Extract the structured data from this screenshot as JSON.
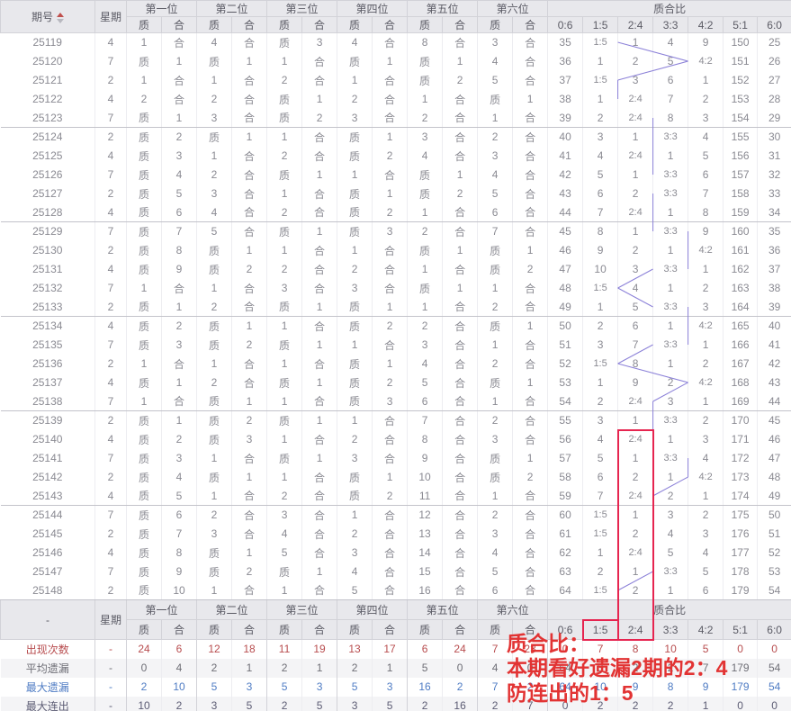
{
  "table": {
    "header": {
      "issue": "期号",
      "weekday": "星期",
      "positions": [
        "第一位",
        "第二位",
        "第三位",
        "第四位",
        "第五位",
        "第六位"
      ],
      "prime": "质",
      "composite": "合",
      "ratio_group": "质合比",
      "ratio_cols": [
        "0:6",
        "1:5",
        "2:4",
        "3:3",
        "4:2",
        "5:1",
        "6:0"
      ]
    },
    "rows": [
      {
        "issue": "25119",
        "week": "4",
        "cells": [
          "1",
          "合",
          "4",
          "合",
          "质",
          "3",
          "4",
          "合",
          "8",
          "合",
          "3",
          "合"
        ],
        "ratio": [
          "35",
          "1:5",
          "1",
          "4",
          "9",
          "150",
          "25"
        ]
      },
      {
        "issue": "25120",
        "week": "7",
        "cells": [
          "质",
          "1",
          "质",
          "1",
          "1",
          "合",
          "质",
          "1",
          "质",
          "1",
          "4",
          "合"
        ],
        "ratio": [
          "36",
          "1",
          "2",
          "5",
          "4:2",
          "151",
          "26"
        ]
      },
      {
        "issue": "25121",
        "week": "2",
        "cells": [
          "1",
          "合",
          "1",
          "合",
          "2",
          "合",
          "1",
          "合",
          "质",
          "2",
          "5",
          "合"
        ],
        "ratio": [
          "37",
          "1:5",
          "3",
          "6",
          "1",
          "152",
          "27"
        ]
      },
      {
        "issue": "25122",
        "week": "4",
        "cells": [
          "2",
          "合",
          "2",
          "合",
          "质",
          "1",
          "2",
          "合",
          "1",
          "合",
          "质",
          "1"
        ],
        "ratio": [
          "38",
          "1",
          "2:4",
          "7",
          "2",
          "153",
          "28"
        ]
      },
      {
        "issue": "25123",
        "week": "7",
        "cells": [
          "质",
          "1",
          "3",
          "合",
          "质",
          "2",
          "3",
          "合",
          "2",
          "合",
          "1",
          "合"
        ],
        "ratio": [
          "39",
          "2",
          "2:4",
          "8",
          "3",
          "154",
          "29"
        ]
      },
      {
        "issue": "25124",
        "week": "2",
        "cells": [
          "质",
          "2",
          "质",
          "1",
          "1",
          "合",
          "质",
          "1",
          "3",
          "合",
          "2",
          "合"
        ],
        "ratio": [
          "40",
          "3",
          "1",
          "3:3",
          "4",
          "155",
          "30"
        ]
      },
      {
        "issue": "25125",
        "week": "4",
        "cells": [
          "质",
          "3",
          "1",
          "合",
          "2",
          "合",
          "质",
          "2",
          "4",
          "合",
          "3",
          "合"
        ],
        "ratio": [
          "41",
          "4",
          "2:4",
          "1",
          "5",
          "156",
          "31"
        ]
      },
      {
        "issue": "25126",
        "week": "7",
        "cells": [
          "质",
          "4",
          "2",
          "合",
          "质",
          "1",
          "1",
          "合",
          "质",
          "1",
          "4",
          "合"
        ],
        "ratio": [
          "42",
          "5",
          "1",
          "3:3",
          "6",
          "157",
          "32"
        ]
      },
      {
        "issue": "25127",
        "week": "2",
        "cells": [
          "质",
          "5",
          "3",
          "合",
          "1",
          "合",
          "质",
          "1",
          "质",
          "2",
          "5",
          "合"
        ],
        "ratio": [
          "43",
          "6",
          "2",
          "3:3",
          "7",
          "158",
          "33"
        ]
      },
      {
        "issue": "25128",
        "week": "4",
        "cells": [
          "质",
          "6",
          "4",
          "合",
          "2",
          "合",
          "质",
          "2",
          "1",
          "合",
          "6",
          "合"
        ],
        "ratio": [
          "44",
          "7",
          "2:4",
          "1",
          "8",
          "159",
          "34"
        ]
      },
      {
        "issue": "25129",
        "week": "7",
        "cells": [
          "质",
          "7",
          "5",
          "合",
          "质",
          "1",
          "质",
          "3",
          "2",
          "合",
          "7",
          "合"
        ],
        "ratio": [
          "45",
          "8",
          "1",
          "3:3",
          "9",
          "160",
          "35"
        ]
      },
      {
        "issue": "25130",
        "week": "2",
        "cells": [
          "质",
          "8",
          "质",
          "1",
          "1",
          "合",
          "1",
          "合",
          "质",
          "1",
          "质",
          "1"
        ],
        "ratio": [
          "46",
          "9",
          "2",
          "1",
          "4:2",
          "161",
          "36"
        ]
      },
      {
        "issue": "25131",
        "week": "4",
        "cells": [
          "质",
          "9",
          "质",
          "2",
          "2",
          "合",
          "2",
          "合",
          "1",
          "合",
          "质",
          "2"
        ],
        "ratio": [
          "47",
          "10",
          "3",
          "3:3",
          "1",
          "162",
          "37"
        ]
      },
      {
        "issue": "25132",
        "week": "7",
        "cells": [
          "1",
          "合",
          "1",
          "合",
          "3",
          "合",
          "3",
          "合",
          "质",
          "1",
          "1",
          "合"
        ],
        "ratio": [
          "48",
          "1:5",
          "4",
          "1",
          "2",
          "163",
          "38"
        ]
      },
      {
        "issue": "25133",
        "week": "2",
        "cells": [
          "质",
          "1",
          "2",
          "合",
          "质",
          "1",
          "质",
          "1",
          "1",
          "合",
          "2",
          "合"
        ],
        "ratio": [
          "49",
          "1",
          "5",
          "3:3",
          "3",
          "164",
          "39"
        ]
      },
      {
        "issue": "25134",
        "week": "4",
        "cells": [
          "质",
          "2",
          "质",
          "1",
          "1",
          "合",
          "质",
          "2",
          "2",
          "合",
          "质",
          "1"
        ],
        "ratio": [
          "50",
          "2",
          "6",
          "1",
          "4:2",
          "165",
          "40"
        ]
      },
      {
        "issue": "25135",
        "week": "7",
        "cells": [
          "质",
          "3",
          "质",
          "2",
          "质",
          "1",
          "1",
          "合",
          "3",
          "合",
          "1",
          "合"
        ],
        "ratio": [
          "51",
          "3",
          "7",
          "3:3",
          "1",
          "166",
          "41"
        ]
      },
      {
        "issue": "25136",
        "week": "2",
        "cells": [
          "1",
          "合",
          "1",
          "合",
          "1",
          "合",
          "质",
          "1",
          "4",
          "合",
          "2",
          "合"
        ],
        "ratio": [
          "52",
          "1:5",
          "8",
          "1",
          "2",
          "167",
          "42"
        ]
      },
      {
        "issue": "25137",
        "week": "4",
        "cells": [
          "质",
          "1",
          "2",
          "合",
          "质",
          "1",
          "质",
          "2",
          "5",
          "合",
          "质",
          "1"
        ],
        "ratio": [
          "53",
          "1",
          "9",
          "2",
          "4:2",
          "168",
          "43"
        ]
      },
      {
        "issue": "25138",
        "week": "7",
        "cells": [
          "1",
          "合",
          "质",
          "1",
          "1",
          "合",
          "质",
          "3",
          "6",
          "合",
          "1",
          "合"
        ],
        "ratio": [
          "54",
          "2",
          "2:4",
          "3",
          "1",
          "169",
          "44"
        ]
      },
      {
        "issue": "25139",
        "week": "2",
        "cells": [
          "质",
          "1",
          "质",
          "2",
          "质",
          "1",
          "1",
          "合",
          "7",
          "合",
          "2",
          "合"
        ],
        "ratio": [
          "55",
          "3",
          "1",
          "3:3",
          "2",
          "170",
          "45"
        ]
      },
      {
        "issue": "25140",
        "week": "4",
        "cells": [
          "质",
          "2",
          "质",
          "3",
          "1",
          "合",
          "2",
          "合",
          "8",
          "合",
          "3",
          "合"
        ],
        "ratio": [
          "56",
          "4",
          "2:4",
          "1",
          "3",
          "171",
          "46"
        ]
      },
      {
        "issue": "25141",
        "week": "7",
        "cells": [
          "质",
          "3",
          "1",
          "合",
          "质",
          "1",
          "3",
          "合",
          "9",
          "合",
          "质",
          "1"
        ],
        "ratio": [
          "57",
          "5",
          "1",
          "3:3",
          "4",
          "172",
          "47"
        ]
      },
      {
        "issue": "25142",
        "week": "2",
        "cells": [
          "质",
          "4",
          "质",
          "1",
          "1",
          "合",
          "质",
          "1",
          "10",
          "合",
          "质",
          "2"
        ],
        "ratio": [
          "58",
          "6",
          "2",
          "1",
          "4:2",
          "173",
          "48"
        ]
      },
      {
        "issue": "25143",
        "week": "4",
        "cells": [
          "质",
          "5",
          "1",
          "合",
          "2",
          "合",
          "质",
          "2",
          "11",
          "合",
          "1",
          "合"
        ],
        "ratio": [
          "59",
          "7",
          "2:4",
          "2",
          "1",
          "174",
          "49"
        ]
      },
      {
        "issue": "25144",
        "week": "7",
        "cells": [
          "质",
          "6",
          "2",
          "合",
          "3",
          "合",
          "1",
          "合",
          "12",
          "合",
          "2",
          "合"
        ],
        "ratio": [
          "60",
          "1:5",
          "1",
          "3",
          "2",
          "175",
          "50"
        ]
      },
      {
        "issue": "25145",
        "week": "2",
        "cells": [
          "质",
          "7",
          "3",
          "合",
          "4",
          "合",
          "2",
          "合",
          "13",
          "合",
          "3",
          "合"
        ],
        "ratio": [
          "61",
          "1:5",
          "2",
          "4",
          "3",
          "176",
          "51"
        ]
      },
      {
        "issue": "25146",
        "week": "4",
        "cells": [
          "质",
          "8",
          "质",
          "1",
          "5",
          "合",
          "3",
          "合",
          "14",
          "合",
          "4",
          "合"
        ],
        "ratio": [
          "62",
          "1",
          "2:4",
          "5",
          "4",
          "177",
          "52"
        ]
      },
      {
        "issue": "25147",
        "week": "7",
        "cells": [
          "质",
          "9",
          "质",
          "2",
          "质",
          "1",
          "4",
          "合",
          "15",
          "合",
          "5",
          "合"
        ],
        "ratio": [
          "63",
          "2",
          "1",
          "3:3",
          "5",
          "178",
          "53"
        ]
      },
      {
        "issue": "25148",
        "week": "2",
        "cells": [
          "质",
          "10",
          "1",
          "合",
          "1",
          "合",
          "5",
          "合",
          "16",
          "合",
          "6",
          "合"
        ],
        "ratio": [
          "64",
          "1:5",
          "2",
          "1",
          "6",
          "179",
          "54"
        ]
      }
    ],
    "footer": {
      "dash": "-",
      "week_dash": "-",
      "rows": [
        {
          "label": "出现次数",
          "color": "red",
          "values": [
            "24",
            "6",
            "12",
            "18",
            "11",
            "19",
            "13",
            "17",
            "6",
            "24",
            "7",
            "23"
          ],
          "ratio": [
            "0",
            "7",
            "8",
            "10",
            "5",
            "0",
            "0"
          ]
        },
        {
          "label": "平均遗漏",
          "color": "gray",
          "values": [
            "0",
            "4",
            "2",
            "1",
            "2",
            "1",
            "2",
            "1",
            "5",
            "0",
            "4",
            "0"
          ],
          "ratio": [
            "64",
            "3",
            "2",
            "2",
            "7",
            "179",
            "54"
          ]
        },
        {
          "label": "最大遗漏",
          "color": "blue",
          "values": [
            "2",
            "10",
            "5",
            "3",
            "5",
            "3",
            "5",
            "3",
            "16",
            "2",
            "7",
            "2"
          ],
          "ratio": [
            "64",
            "10",
            "9",
            "8",
            "9",
            "179",
            "54"
          ]
        },
        {
          "label": "最大连出",
          "color": "navy",
          "values": [
            "10",
            "2",
            "3",
            "5",
            "2",
            "5",
            "3",
            "5",
            "2",
            "16",
            "2",
            "7"
          ],
          "ratio": [
            "0",
            "2",
            "2",
            "2",
            "1",
            "0",
            "0"
          ]
        }
      ]
    }
  },
  "annotation": {
    "line1": "质合比：",
    "line2": "本期看好遗漏2期的2：4",
    "line3": "防连出的1：5"
  },
  "colors": {
    "prime_text": "#a46ad6",
    "prime_bg": "#e4d5f6",
    "composite_text": "#e0822a",
    "composite_bg": "#fce3a6",
    "highlight_indigo": "#6e62d5",
    "annotation_red": "#e23333",
    "box_red": "#e62550",
    "footer_red": "#b84d4f",
    "footer_blue": "#4f7cc4"
  }
}
